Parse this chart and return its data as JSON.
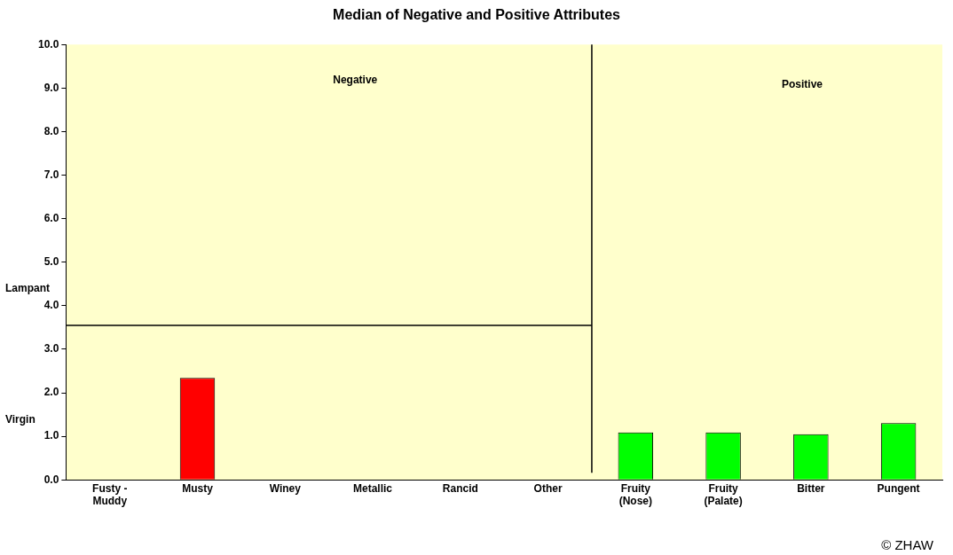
{
  "chart_data": {
    "type": "bar",
    "title": "Median of Negative and Positive Attributes",
    "categories": [
      "Fusty - Muddy",
      "Musty",
      "Winey",
      "Metallic",
      "Rancid",
      "Other",
      "Fruity (Nose)",
      "Fruity (Palate)",
      "Bitter",
      "Pungent"
    ],
    "values": [
      null,
      2.34,
      null,
      null,
      null,
      null,
      1.09,
      1.09,
      1.05,
      1.3
    ],
    "colors": [
      "#ff0000",
      "#ff0000",
      "#ff0000",
      "#ff0000",
      "#ff0000",
      "#ff0000",
      "#00ff00",
      "#00ff00",
      "#00ff00",
      "#00ff00"
    ],
    "ylim": [
      0,
      10
    ],
    "yticks": [
      {
        "value": 0,
        "label": "0.0"
      },
      {
        "value": 1,
        "label": "1.0"
      },
      {
        "value": 2,
        "label": "2.0"
      },
      {
        "value": 3,
        "label": "3.0"
      },
      {
        "value": 4,
        "label": "4.0"
      },
      {
        "value": 5,
        "label": "5.0"
      },
      {
        "value": 6,
        "label": "6.0"
      },
      {
        "value": 7,
        "label": "7.0"
      },
      {
        "value": 8,
        "label": "8.0"
      },
      {
        "value": 9,
        "label": "9.0"
      },
      {
        "value": 10,
        "label": "10.0"
      }
    ],
    "ref_lines": [
      {
        "axis": "y",
        "value": 3.55,
        "color": "#000000"
      }
    ],
    "annotations": [
      "Negative",
      "Positive",
      "Lampant",
      "Virgin",
      "© ZHAW"
    ],
    "grid": false,
    "legend": false
  }
}
